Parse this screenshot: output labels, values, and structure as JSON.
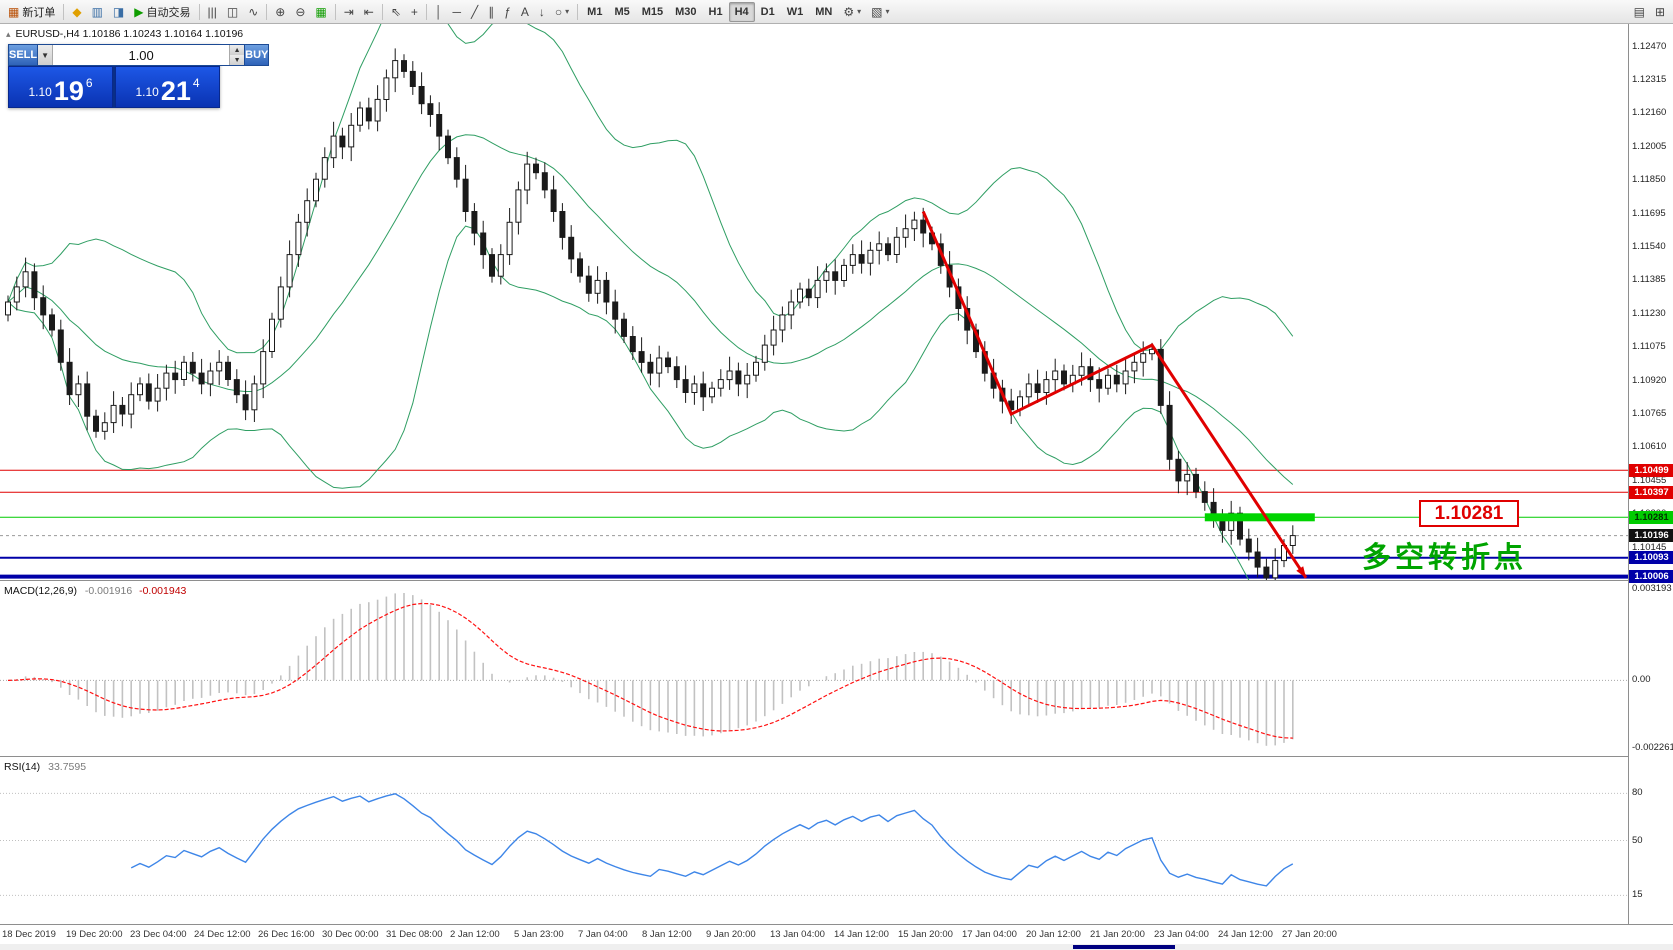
{
  "icons": {
    "caret_up": "▲",
    "caret_down": "▼"
  },
  "toolbar": {
    "items": [
      {
        "name": "new-order",
        "glyph": "▦",
        "color": "#b84c00",
        "label": "新订单"
      },
      {
        "sep": true
      },
      {
        "name": "market-watch",
        "glyph": "◆",
        "color": "#e0a000"
      },
      {
        "name": "data-window",
        "glyph": "▥",
        "color": "#3a6ea5"
      },
      {
        "name": "navigator",
        "glyph": "◨",
        "color": "#3a6ea5"
      },
      {
        "name": "autotrading",
        "glyph": "▶",
        "color": "#0f9d00",
        "label": "自动交易"
      },
      {
        "sep": true
      },
      {
        "name": "bar-chart-type",
        "glyph": "|||",
        "color": "#444"
      },
      {
        "name": "candlestick-type",
        "glyph": "◫",
        "color": "#444"
      },
      {
        "name": "line-chart-type",
        "glyph": "∿",
        "color": "#444"
      },
      {
        "sep": true
      },
      {
        "name": "zoom-in",
        "glyph": "⊕",
        "color": "#444"
      },
      {
        "name": "zoom-out",
        "glyph": "⊖",
        "color": "#444"
      },
      {
        "name": "tile-windows",
        "glyph": "▦",
        "color": "#0f9d00"
      },
      {
        "sep": true
      },
      {
        "name": "auto-scroll",
        "glyph": "⇥",
        "color": "#444"
      },
      {
        "name": "chart-shift",
        "glyph": "⇤",
        "color": "#444"
      },
      {
        "sep": true
      },
      {
        "name": "cursor-tool",
        "glyph": "⇖",
        "color": "#444"
      },
      {
        "name": "crosshair-tool",
        "glyph": "+",
        "color": "#444"
      },
      {
        "sep": true
      },
      {
        "name": "vertical-line-tool",
        "glyph": "│",
        "color": "#444"
      },
      {
        "name": "horizontal-line-tool",
        "glyph": "─",
        "color": "#444"
      },
      {
        "name": "trendline-tool",
        "glyph": "╱",
        "color": "#444"
      },
      {
        "name": "channel-tool",
        "glyph": "∥",
        "color": "#444"
      },
      {
        "name": "fibonacci-tool",
        "glyph": "ƒ",
        "color": "#444"
      },
      {
        "name": "text-tool",
        "glyph": "A",
        "color": "#444"
      },
      {
        "name": "arrows-tool",
        "glyph": "↓",
        "color": "#444"
      },
      {
        "name": "shapes-tool",
        "glyph": "○",
        "color": "#444",
        "caret": true
      },
      {
        "sep": true
      }
    ],
    "timeframes": [
      {
        "label": "M1"
      },
      {
        "label": "M5"
      },
      {
        "label": "M15"
      },
      {
        "label": "M30"
      },
      {
        "label": "H1"
      },
      {
        "label": "H4",
        "active": true
      },
      {
        "label": "D1"
      },
      {
        "label": "W1"
      },
      {
        "label": "MN"
      }
    ],
    "after_items": [
      {
        "name": "indicator-list",
        "glyph": "⚙",
        "color": "#444",
        "caret": true
      },
      {
        "name": "templates",
        "glyph": "▧",
        "color": "#444",
        "caret": true
      }
    ],
    "right_items": [
      {
        "name": "chart-profile",
        "glyph": "▤",
        "color": "#444"
      },
      {
        "name": "window-arrange",
        "glyph": "⊞",
        "color": "#444"
      }
    ]
  },
  "trade_panel": {
    "sell_label": "SELL",
    "buy_label": "BUY",
    "volume": "1.00",
    "sell_price_int": "1.10",
    "sell_price_big": "19",
    "sell_price_sup": "6",
    "buy_price_int": "1.10",
    "buy_price_big": "21",
    "buy_price_sup": "4"
  },
  "symbol_line": {
    "marker": "▴",
    "symbol": "EURUSD-,H4",
    "ohlc": "1.10186 1.10243 1.10164 1.10196"
  },
  "annotations": {
    "price_box_text": "1.10281",
    "turning_point_text": "多空转折点"
  },
  "price_axis": {
    "ticks": [
      "1.12470",
      "1.12315",
      "1.12160",
      "1.12005",
      "1.11850",
      "1.11695",
      "1.11540",
      "1.11385",
      "1.11230",
      "1.11075",
      "1.10920",
      "1.10765",
      "1.10610",
      "1.10455",
      "1.10300",
      "1.10145",
      "1.09990"
    ],
    "badges": [
      {
        "name": "resistance-level-2",
        "value": "1.10499",
        "bg": "#e00000",
        "fg": "#ffffff"
      },
      {
        "name": "resistance-level-1",
        "value": "1.10397",
        "bg": "#e00000",
        "fg": "#ffffff"
      },
      {
        "name": "pivot-level",
        "value": "1.10281",
        "bg": "#00cc00",
        "fg": "#003300"
      },
      {
        "name": "current-price",
        "value": "1.10196",
        "bg": "#111111",
        "fg": "#ffffff"
      },
      {
        "name": "support-level-1",
        "value": "1.10093",
        "bg": "#0000a8",
        "fg": "#ffffff"
      },
      {
        "name": "support-level-2",
        "value": "1.10006",
        "bg": "#0000a8",
        "fg": "#ffffff"
      }
    ]
  },
  "time_axis": {
    "labels": [
      "18 Dec 2019",
      "19 Dec 20:00",
      "23 Dec 04:00",
      "24 Dec 12:00",
      "26 Dec 16:00",
      "30 Dec 00:00",
      "31 Dec 08:00",
      "2 Jan 12:00",
      "5 Jan 23:00",
      "7 Jan 04:00",
      "8 Jan 12:00",
      "9 Jan 20:00",
      "13 Jan 04:00",
      "14 Jan 12:00",
      "15 Jan 20:00",
      "17 Jan 04:00",
      "20 Jan 12:00",
      "21 Jan 20:00",
      "23 Jan 04:00",
      "24 Jan 12:00",
      "27 Jan 20:00"
    ]
  },
  "chart_data": {
    "type": "candlestick",
    "symbol": "EURUSD",
    "timeframe": "H4",
    "price_domain": [
      1.0999,
      1.1257
    ],
    "closes": [
      1.1128,
      1.1135,
      1.1142,
      1.113,
      1.1122,
      1.1115,
      1.11,
      1.1085,
      1.109,
      1.1075,
      1.1068,
      1.1072,
      1.108,
      1.1076,
      1.1085,
      1.109,
      1.1082,
      1.1088,
      1.1095,
      1.1092,
      1.11,
      1.1095,
      1.109,
      1.1096,
      1.11,
      1.1092,
      1.1085,
      1.1078,
      1.109,
      1.1105,
      1.112,
      1.1135,
      1.115,
      1.1165,
      1.1175,
      1.1185,
      1.1195,
      1.1205,
      1.12,
      1.121,
      1.1218,
      1.1212,
      1.1222,
      1.1232,
      1.124,
      1.1235,
      1.1228,
      1.122,
      1.1215,
      1.1205,
      1.1195,
      1.1185,
      1.117,
      1.116,
      1.115,
      1.114,
      1.115,
      1.1165,
      1.118,
      1.1192,
      1.1188,
      1.118,
      1.117,
      1.1158,
      1.1148,
      1.114,
      1.1132,
      1.1138,
      1.1128,
      1.112,
      1.1112,
      1.1105,
      1.11,
      1.1095,
      1.1102,
      1.1098,
      1.1092,
      1.1086,
      1.109,
      1.1084,
      1.1088,
      1.1092,
      1.1096,
      1.109,
      1.1094,
      1.11,
      1.1108,
      1.1115,
      1.1122,
      1.1128,
      1.1134,
      1.113,
      1.1138,
      1.1142,
      1.1138,
      1.1145,
      1.115,
      1.1146,
      1.1152,
      1.1155,
      1.115,
      1.1158,
      1.1162,
      1.1166,
      1.116,
      1.1155,
      1.1145,
      1.1135,
      1.1125,
      1.1115,
      1.1105,
      1.1095,
      1.1088,
      1.1082,
      1.1078,
      1.1084,
      1.109,
      1.1086,
      1.1092,
      1.1096,
      1.109,
      1.1094,
      1.1098,
      1.1092,
      1.1088,
      1.1094,
      1.109,
      1.1096,
      1.11,
      1.1104,
      1.1106,
      1.108,
      1.1055,
      1.1045,
      1.1048,
      1.104,
      1.1035,
      1.1028,
      1.1022,
      1.103,
      1.1018,
      1.1012,
      1.1005,
      1.1,
      1.1008,
      1.1015,
      1.10196
    ],
    "bollinger": {
      "period": 20,
      "deviation": 2,
      "color": "#2f9e63"
    },
    "levels": [
      {
        "price": 1.10499,
        "color": "#e00000",
        "width": 1
      },
      {
        "price": 1.10397,
        "color": "#e00000",
        "width": 1
      },
      {
        "price": 1.10281,
        "color": "#00cc00",
        "width": 1
      },
      {
        "price": 1.10093,
        "color": "#0000a8",
        "width": 2
      },
      {
        "price": 1.10006,
        "color": "#0000a8",
        "width": 4
      }
    ],
    "current_price": 1.10196,
    "highlight_zone": {
      "price": 1.10281,
      "i_start": 136,
      "i_end": 148.5,
      "color": "#00d400"
    },
    "trend_line": {
      "color": "#e00000",
      "points": [
        {
          "i": 104,
          "p": 1.117
        },
        {
          "i": 114,
          "p": 1.1076
        },
        {
          "i": 130,
          "p": 1.1108
        },
        {
          "i": 147.5,
          "p": 1.1
        }
      ]
    },
    "macd": {
      "label": "MACD(12,26,9)",
      "value_1": "-0.001916",
      "value_2": "-0.001943",
      "axis_max": "0.003193",
      "axis_zero": "0.00",
      "axis_min": "-0.002261"
    },
    "rsi": {
      "label": "RSI(14)",
      "value": "33.7595",
      "axis_levels": [
        80,
        50,
        15
      ]
    }
  }
}
